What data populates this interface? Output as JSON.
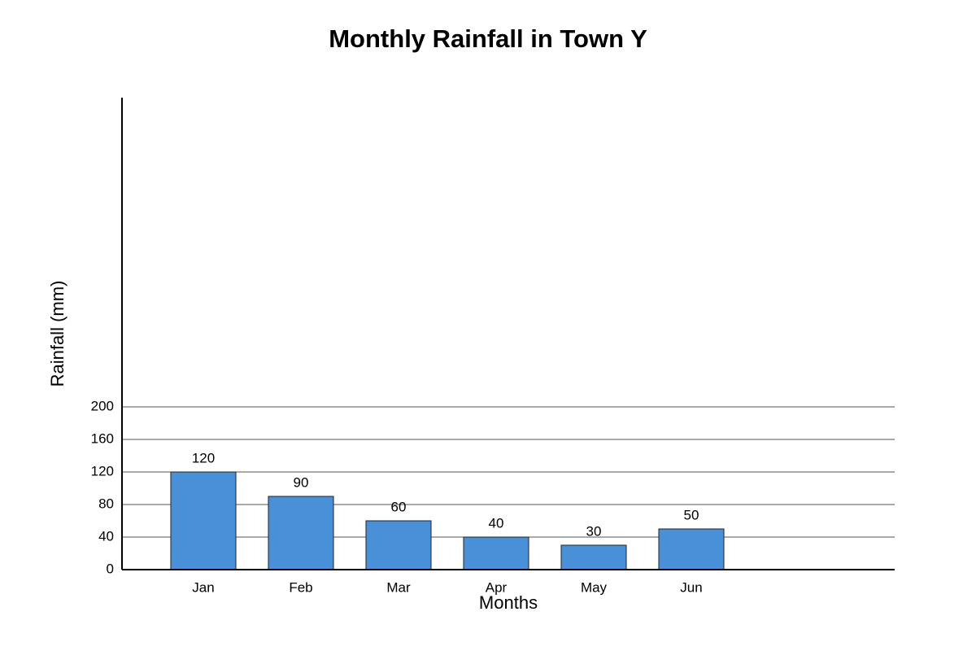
{
  "chart_data": {
    "type": "bar",
    "title": "Monthly Rainfall in Town Y",
    "x_label": "Months",
    "y_label": "Rainfall (mm)",
    "categories": [
      "Jan",
      "Feb",
      "Mar",
      "Apr",
      "May",
      "Jun"
    ],
    "values": [
      120,
      90,
      60,
      40,
      30,
      50
    ],
    "color": "#4a90d9",
    "ylim": [
      0,
      580
    ],
    "yticks": [
      0,
      40,
      80,
      120,
      160,
      200
    ],
    "grid": true
  }
}
